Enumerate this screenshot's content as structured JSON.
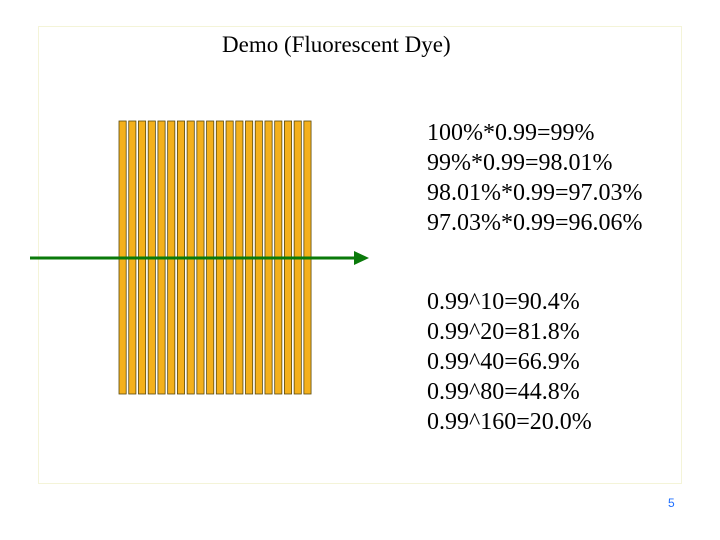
{
  "slide": {
    "title": "Demo (Fluorescent Dye)",
    "page_number": "5"
  },
  "diagram": {
    "layer_count": 20,
    "layer_color": "#f4b01c",
    "layer_border_color": "#5a4a10",
    "arrow_color": "#0a7a0a"
  },
  "calculations": {
    "step_by_step": [
      "100%*0.99=99%",
      "99%*0.99=98.01%",
      "98.01%*0.99=97.03%",
      "97.03%*0.99=96.06%"
    ],
    "powers": [
      "0.99^10=90.4%",
      "0.99^20=81.8%",
      "0.99^40=66.9%",
      "0.99^80=44.8%",
      "0.99^160=20.0%"
    ]
  }
}
